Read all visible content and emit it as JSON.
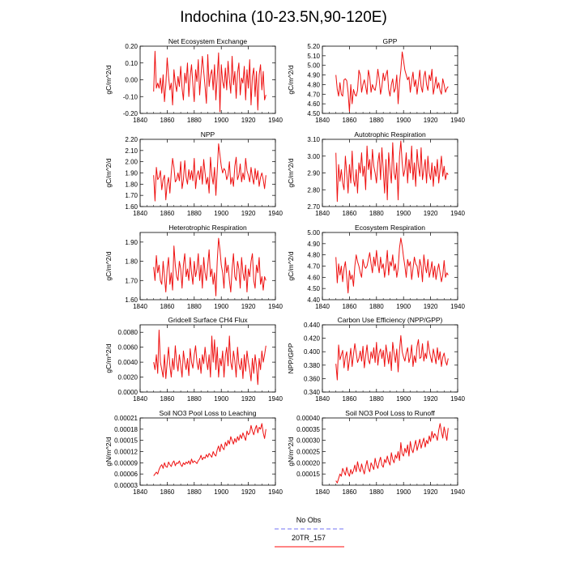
{
  "title": "Indochina (10-23.5N,90-120E)",
  "legend": [
    {
      "label": "No Obs",
      "color": "#8f8ff7",
      "style": "dashed"
    },
    {
      "label": "20TR_157",
      "color": "#ff3c3c",
      "style": "solid"
    }
  ],
  "line_color": "#ee1111",
  "chart_data": [
    {
      "type": "line",
      "title": "Net Ecosystem Exchange",
      "ylabel": "gC/m^2/d",
      "xlim": [
        1840,
        1940
      ],
      "xticks": [
        "1840",
        "1860",
        "1880",
        "1900",
        "1920",
        "1940"
      ],
      "ylim": [
        -0.2,
        0.2
      ],
      "yticks": [
        "-0.20",
        "-0.10",
        "0.00",
        "0.10",
        "0.20"
      ],
      "ytick_values": [
        -0.2,
        -0.1,
        0,
        0.1,
        0.2
      ],
      "x_start": 1850,
      "x_end": 1933,
      "values": [
        -0.07,
        0.17,
        -0.05,
        -0.02,
        -0.05,
        0.01,
        -0.08,
        0.03,
        -0.13,
        -0.03,
        0.13,
        0.02,
        -0.06,
        -0.02,
        -0.15,
        0.06,
        -0.02,
        -0.07,
        0.02,
        -0.04,
        0.08,
        -0.05,
        -0.12,
        0.04,
        -0.02,
        0.1,
        -0.1,
        0.02,
        0.09,
        -0.03,
        -0.13,
        0.06,
        -0.01,
        0.12,
        -0.09,
        0.03,
        0.14,
        0.05,
        -0.04,
        -0.14,
        0.15,
        -0.04,
        0.03,
        0.06,
        -0.06,
        0.09,
        -0.12,
        0.02,
        0.16,
        -0.19,
        0.09,
        -0.01,
        -0.05,
        0.07,
        -0.06,
        0.11,
        0.0,
        -0.08,
        0.14,
        -0.03,
        0.05,
        -0.11,
        0.04,
        0.1,
        -0.09,
        0.01,
        -0.02,
        0.08,
        -0.12,
        0.06,
        -0.05,
        0.12,
        -0.15,
        0.02,
        0.07,
        -0.1,
        0.05,
        -0.18,
        0.03,
        0.09,
        -0.06,
        0.05,
        -0.12,
        -0.09
      ]
    },
    {
      "type": "line",
      "title": "GPP",
      "ylabel": "gC/m^2/d",
      "xlim": [
        1840,
        1940
      ],
      "xticks": [
        "1840",
        "1860",
        "1880",
        "1900",
        "1920",
        "1940"
      ],
      "ylim": [
        4.5,
        5.2
      ],
      "yticks": [
        "4.50",
        "4.60",
        "4.70",
        "4.80",
        "4.90",
        "5.00",
        "5.10",
        "5.20"
      ],
      "ytick_values": [
        4.5,
        4.6,
        4.7,
        4.8,
        4.9,
        5.0,
        5.1,
        5.2
      ],
      "x_start": 1850,
      "x_end": 1933,
      "values": [
        4.9,
        4.75,
        4.68,
        4.82,
        4.7,
        4.68,
        4.85,
        4.86,
        4.84,
        4.72,
        4.52,
        4.8,
        4.6,
        4.75,
        4.7,
        4.68,
        4.74,
        4.95,
        4.9,
        4.72,
        4.8,
        4.85,
        4.78,
        4.7,
        4.95,
        4.88,
        4.72,
        4.8,
        4.76,
        4.74,
        4.82,
        4.96,
        4.86,
        4.7,
        4.78,
        4.92,
        4.84,
        4.9,
        4.95,
        4.75,
        4.68,
        4.8,
        4.86,
        4.72,
        4.76,
        4.9,
        4.6,
        4.82,
        4.95,
        5.14,
        5.05,
        4.95,
        4.9,
        4.85,
        4.88,
        4.72,
        4.84,
        4.93,
        4.78,
        4.85,
        4.7,
        4.82,
        4.95,
        4.78,
        4.72,
        4.88,
        4.94,
        4.8,
        4.74,
        4.9,
        4.84,
        4.96,
        4.7,
        4.78,
        4.88,
        4.76,
        4.82,
        4.74,
        4.7,
        4.86,
        4.8,
        4.72,
        4.76,
        4.78
      ]
    },
    {
      "type": "line",
      "title": "NPP",
      "ylabel": "gC/m^2/d",
      "xlim": [
        1840,
        1940
      ],
      "xticks": [
        "1840",
        "1860",
        "1880",
        "1900",
        "1920",
        "1940"
      ],
      "ylim": [
        1.6,
        2.2
      ],
      "yticks": [
        "1.60",
        "1.70",
        "1.80",
        "1.90",
        "2.00",
        "2.10",
        "2.20"
      ],
      "ytick_values": [
        1.6,
        1.7,
        1.8,
        1.9,
        2.0,
        2.1,
        2.2
      ],
      "x_start": 1850,
      "x_end": 1933,
      "values": [
        1.88,
        1.65,
        1.95,
        1.84,
        1.86,
        1.92,
        1.75,
        1.84,
        1.88,
        1.66,
        1.8,
        1.86,
        1.72,
        1.9,
        2.03,
        1.95,
        1.82,
        1.84,
        1.9,
        1.83,
        2.0,
        1.76,
        1.84,
        2.01,
        1.86,
        1.8,
        1.93,
        1.84,
        1.92,
        1.83,
        2.03,
        1.76,
        1.88,
        1.92,
        1.84,
        1.96,
        1.8,
        2.02,
        1.9,
        1.8,
        1.86,
        1.72,
        2.04,
        1.88,
        1.8,
        1.95,
        1.7,
        1.92,
        2.16,
        2.06,
        1.96,
        1.9,
        1.94,
        1.92,
        1.84,
        1.88,
        2.0,
        1.8,
        1.86,
        1.78,
        1.96,
        2.04,
        1.84,
        1.88,
        1.98,
        1.82,
        1.9,
        1.84,
        2.03,
        1.92,
        1.88,
        1.82,
        1.95,
        1.86,
        1.8,
        1.94,
        1.84,
        1.92,
        1.78,
        1.86,
        1.9,
        1.84,
        1.76,
        1.88
      ]
    },
    {
      "type": "line",
      "title": "Autotrophic Respiration",
      "ylabel": "gC/m^2/d",
      "xlim": [
        1840,
        1940
      ],
      "xticks": [
        "1840",
        "1860",
        "1880",
        "1900",
        "1920",
        "1940"
      ],
      "ylim": [
        2.7,
        3.1
      ],
      "yticks": [
        "2.70",
        "2.80",
        "2.90",
        "3.00",
        "3.10"
      ],
      "ytick_values": [
        2.7,
        2.8,
        2.9,
        3.0,
        3.1
      ],
      "x_start": 1850,
      "x_end": 1933,
      "values": [
        3.02,
        2.73,
        2.95,
        2.85,
        2.92,
        2.84,
        2.8,
        3.0,
        2.9,
        2.78,
        2.95,
        2.84,
        3.03,
        2.86,
        2.82,
        2.92,
        2.78,
        2.96,
        2.9,
        3.02,
        2.88,
        2.94,
        2.8,
        3.06,
        2.92,
        2.98,
        2.86,
        3.04,
        2.94,
        2.9,
        2.84,
        2.96,
        3.02,
        2.86,
        3.05,
        2.92,
        2.78,
        2.98,
        2.74,
        3.02,
        2.92,
        2.84,
        3.08,
        2.9,
        2.86,
        2.96,
        2.74,
        3.0,
        3.09,
        2.96,
        2.88,
        2.92,
        3.02,
        2.84,
        2.98,
        2.9,
        3.06,
        2.86,
        2.96,
        2.82,
        3.04,
        2.94,
        2.88,
        3.05,
        2.86,
        2.92,
        2.98,
        2.84,
        3.0,
        2.9,
        2.86,
        2.96,
        2.82,
        2.94,
        2.88,
        2.98,
        2.84,
        2.92,
        3.0,
        2.88,
        2.94,
        2.86,
        2.9,
        2.89
      ]
    },
    {
      "type": "line",
      "title": "Heterotrophic Respiration",
      "ylabel": "gC/m^2/d",
      "xlim": [
        1840,
        1940
      ],
      "xticks": [
        "1840",
        "1860",
        "1880",
        "1900",
        "1920",
        "1940"
      ],
      "ylim": [
        1.6,
        1.95
      ],
      "yticks": [
        "1.60",
        "1.70",
        "1.80",
        "1.90"
      ],
      "ytick_values": [
        1.6,
        1.7,
        1.8,
        1.9
      ],
      "x_start": 1850,
      "x_end": 1933,
      "values": [
        1.77,
        1.7,
        1.83,
        1.74,
        1.78,
        1.7,
        1.68,
        1.8,
        1.72,
        1.64,
        1.76,
        1.82,
        1.68,
        1.74,
        1.65,
        1.88,
        1.78,
        1.72,
        1.7,
        1.8,
        1.76,
        1.66,
        1.78,
        1.84,
        1.72,
        1.76,
        1.7,
        1.82,
        1.74,
        1.68,
        1.8,
        1.72,
        1.76,
        1.84,
        1.7,
        1.78,
        1.66,
        1.82,
        1.74,
        1.7,
        1.78,
        1.86,
        1.72,
        1.76,
        1.68,
        1.74,
        1.62,
        1.8,
        1.92,
        1.86,
        1.78,
        1.74,
        1.66,
        1.82,
        1.74,
        1.78,
        1.7,
        1.64,
        1.76,
        1.84,
        1.72,
        1.7,
        1.8,
        1.76,
        1.66,
        1.82,
        1.74,
        1.7,
        1.78,
        1.64,
        1.76,
        1.72,
        1.8,
        1.84,
        1.7,
        1.66,
        1.78,
        1.74,
        1.82,
        1.68,
        1.72,
        1.65,
        1.72,
        1.7
      ]
    },
    {
      "type": "line",
      "title": "Ecosystem Respiration",
      "ylabel": "gC/m^2/d",
      "xlim": [
        1840,
        1940
      ],
      "xticks": [
        "1840",
        "1860",
        "1880",
        "1900",
        "1920",
        "1940"
      ],
      "ylim": [
        4.4,
        5.0
      ],
      "yticks": [
        "4.40",
        "4.50",
        "4.60",
        "4.70",
        "4.80",
        "4.90",
        "5.00"
      ],
      "ytick_values": [
        4.4,
        4.5,
        4.6,
        4.7,
        4.8,
        4.9,
        5.0
      ],
      "x_start": 1850,
      "x_end": 1933,
      "values": [
        4.78,
        4.55,
        4.72,
        4.62,
        4.7,
        4.56,
        4.68,
        4.74,
        4.6,
        4.46,
        4.66,
        4.58,
        4.62,
        4.52,
        4.7,
        4.8,
        4.74,
        4.7,
        4.64,
        4.6,
        4.76,
        4.7,
        4.68,
        4.7,
        4.76,
        4.82,
        4.72,
        4.64,
        4.78,
        4.7,
        4.84,
        4.72,
        4.64,
        4.78,
        4.68,
        4.72,
        4.6,
        4.7,
        4.84,
        4.62,
        4.74,
        4.7,
        4.8,
        4.66,
        4.72,
        4.6,
        4.68,
        4.86,
        4.95,
        4.88,
        4.78,
        4.7,
        4.6,
        4.76,
        4.7,
        4.74,
        4.58,
        4.68,
        4.78,
        4.72,
        4.7,
        4.6,
        4.76,
        4.7,
        4.56,
        4.8,
        4.7,
        4.64,
        4.76,
        4.6,
        4.66,
        4.74,
        4.6,
        4.7,
        4.58,
        4.66,
        4.72,
        4.64,
        4.56,
        4.62,
        4.75,
        4.6,
        4.64,
        4.62
      ]
    },
    {
      "type": "line",
      "title": "Gridcell Surface CH4 Flux",
      "ylabel": "gC/m^2/d",
      "xlim": [
        1840,
        1940
      ],
      "xticks": [
        "1840",
        "1860",
        "1880",
        "1900",
        "1920",
        "1940"
      ],
      "ylim": [
        0.0,
        0.009
      ],
      "yticks": [
        "0.0000",
        "0.0020",
        "0.0040",
        "0.0060",
        "0.0080"
      ],
      "ytick_values": [
        0,
        0.002,
        0.004,
        0.006,
        0.008
      ],
      "x_start": 1850,
      "x_end": 1933,
      "values": [
        0.004,
        0.003,
        0.005,
        0.0025,
        0.0083,
        0.004,
        0.003,
        0.002,
        0.005,
        0.0018,
        0.004,
        0.006,
        0.0035,
        0.002,
        0.0045,
        0.003,
        0.0062,
        0.004,
        0.0028,
        0.005,
        0.0036,
        0.002,
        0.0055,
        0.004,
        0.003,
        0.0045,
        0.0022,
        0.0058,
        0.004,
        0.0032,
        0.005,
        0.0062,
        0.004,
        0.003,
        0.0045,
        0.0025,
        0.005,
        0.0038,
        0.006,
        0.0042,
        0.003,
        0.005,
        0.002,
        0.0075,
        0.004,
        0.007,
        0.003,
        0.006,
        0.002,
        0.0045,
        0.0035,
        0.0055,
        0.002,
        0.0048,
        0.006,
        0.0035,
        0.0075,
        0.004,
        0.003,
        0.0055,
        0.0042,
        0.002,
        0.006,
        0.0038,
        0.003,
        0.0045,
        0.0018,
        0.005,
        0.0028,
        0.0055,
        0.004,
        0.003,
        0.0015,
        0.0045,
        0.0025,
        0.005,
        0.0035,
        0.001,
        0.0045,
        0.003,
        0.0055,
        0.004,
        0.005,
        0.0062
      ]
    },
    {
      "type": "line",
      "title": "Carbon Use Efficiency (NPP/GPP)",
      "ylabel": "NPP/GPP",
      "xlim": [
        1840,
        1940
      ],
      "xticks": [
        "1840",
        "1860",
        "1880",
        "1900",
        "1920",
        "1940"
      ],
      "ylim": [
        0.34,
        0.44
      ],
      "yticks": [
        "0.340",
        "0.360",
        "0.380",
        "0.400",
        "0.420",
        "0.440"
      ],
      "ytick_values": [
        0.34,
        0.36,
        0.38,
        0.4,
        0.42,
        0.44
      ],
      "x_start": 1850,
      "x_end": 1933,
      "values": [
        0.382,
        0.358,
        0.41,
        0.388,
        0.395,
        0.402,
        0.376,
        0.392,
        0.4,
        0.372,
        0.388,
        0.405,
        0.378,
        0.396,
        0.412,
        0.398,
        0.384,
        0.39,
        0.401,
        0.386,
        0.408,
        0.376,
        0.394,
        0.41,
        0.388,
        0.382,
        0.4,
        0.39,
        0.406,
        0.384,
        0.414,
        0.38,
        0.398,
        0.404,
        0.39,
        0.402,
        0.378,
        0.41,
        0.396,
        0.382,
        0.4,
        0.372,
        0.414,
        0.398,
        0.384,
        0.404,
        0.37,
        0.402,
        0.424,
        0.4,
        0.392,
        0.386,
        0.398,
        0.406,
        0.384,
        0.392,
        0.41,
        0.378,
        0.394,
        0.384,
        0.408,
        0.418,
        0.39,
        0.392,
        0.412,
        0.386,
        0.398,
        0.39,
        0.416,
        0.402,
        0.392,
        0.384,
        0.404,
        0.394,
        0.382,
        0.406,
        0.388,
        0.4,
        0.378,
        0.392,
        0.398,
        0.386,
        0.38,
        0.39
      ]
    },
    {
      "type": "line",
      "title": "Soil NO3 Pool Loss to Leaching",
      "ylabel": "gN/m^2/d",
      "xlim": [
        1840,
        1940
      ],
      "xticks": [
        "1840",
        "1860",
        "1880",
        "1900",
        "1920",
        "1940"
      ],
      "ylim": [
        3e-05,
        0.00021
      ],
      "yticks": [
        "0.00003",
        "0.00006",
        "0.00009",
        "0.00012",
        "0.00015",
        "0.00018",
        "0.00021"
      ],
      "ytick_values": [
        3e-05,
        6e-05,
        9e-05,
        0.00012,
        0.00015,
        0.00018,
        0.00021
      ],
      "x_start": 1850,
      "x_end": 1933,
      "values": [
        5.5e-05,
        6e-05,
        6.5e-05,
        6e-05,
        7.2e-05,
        8e-05,
        8.5e-05,
        7.5e-05,
        9e-05,
        8e-05,
        7.8e-05,
        9.2e-05,
        8.5e-05,
        8e-05,
        9e-05,
        9.5e-05,
        8.2e-05,
        9e-05,
        8.8e-05,
        9.5e-05,
        8.5e-05,
        8e-05,
        9e-05,
        8.5e-05,
        9.2e-05,
        8.8e-05,
        9.5e-05,
        8.6e-05,
        0.0001,
        9e-05,
        9.5e-05,
        9.2e-05,
        8.8e-05,
        9.6e-05,
        0.0001,
        0.00011,
        9.8e-05,
        0.000105,
        0.000102,
        0.000112,
        0.000105,
        0.000115,
        0.00011,
        0.000105,
        0.00012,
        0.000112,
        0.000108,
        0.000125,
        0.000135,
        0.00012,
        0.00014,
        0.00013,
        0.000125,
        0.000145,
        0.000135,
        0.00015,
        0.00014,
        0.00016,
        0.00015,
        0.00014,
        0.000155,
        0.000145,
        0.00016,
        0.00015,
        0.000165,
        0.000155,
        0.00017,
        0.00016,
        0.00015,
        0.000175,
        0.000165,
        0.00017,
        0.00019,
        0.000175,
        0.000165,
        0.00018,
        0.00019,
        0.00017,
        0.000185,
        0.00018,
        0.000195,
        0.00017,
        0.000155,
        0.00018
      ]
    },
    {
      "type": "line",
      "title": "Soil NO3 Pool Loss to Runoff",
      "ylabel": "gN/m^2/d",
      "xlim": [
        1840,
        1940
      ],
      "xticks": [
        "1840",
        "1860",
        "1880",
        "1900",
        "1920",
        "1940"
      ],
      "ylim": [
        0.0001,
        0.0004
      ],
      "yticks": [
        "0.00015",
        "0.00020",
        "0.00025",
        "0.00030",
        "0.00035",
        "0.00040"
      ],
      "ytick_values": [
        0.00015,
        0.0002,
        0.00025,
        0.0003,
        0.00035,
        0.0004
      ],
      "x_start": 1850,
      "x_end": 1933,
      "values": [
        0.00012,
        0.00011,
        0.00013,
        0.00015,
        0.00014,
        0.000175,
        0.00016,
        0.000145,
        0.00018,
        0.000155,
        0.00014,
        0.00017,
        0.00015,
        0.000165,
        0.00019,
        0.00016,
        0.000205,
        0.000175,
        0.00016,
        0.000195,
        0.00017,
        0.00015,
        0.000185,
        0.00021,
        0.000175,
        0.00016,
        0.0002,
        0.000185,
        0.00017,
        0.00022,
        0.00019,
        0.000175,
        0.000205,
        0.000225,
        0.00019,
        0.00018,
        0.000215,
        0.0002,
        0.00023,
        0.000205,
        0.00019,
        0.000245,
        0.000215,
        0.0002,
        0.000235,
        0.00022,
        0.00025,
        0.00021,
        0.00029,
        0.00024,
        0.00023,
        0.000265,
        0.000245,
        0.00028,
        0.00023,
        0.000295,
        0.00026,
        0.000245,
        0.000275,
        0.0003,
        0.000255,
        0.00028,
        0.000305,
        0.000265,
        0.00029,
        0.00031,
        0.00027,
        0.0003,
        0.000285,
        0.00032,
        0.000295,
        0.00034,
        0.00031,
        0.00033,
        0.00032,
        0.0003,
        0.000345,
        0.000375,
        0.00034,
        0.00031,
        0.00036,
        0.00033,
        0.0003,
        0.000355
      ]
    }
  ]
}
